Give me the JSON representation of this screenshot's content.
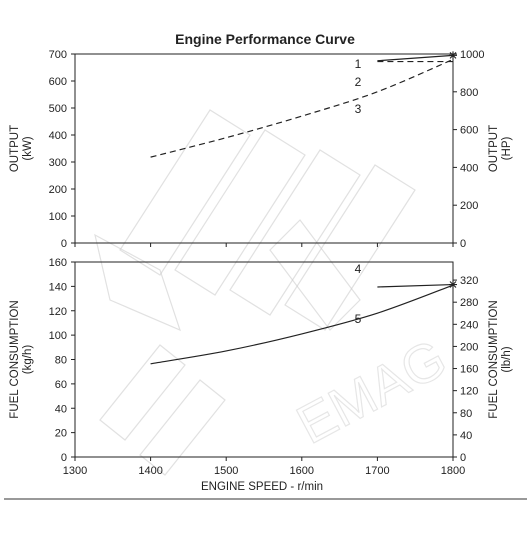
{
  "chart_data": {
    "type": "line",
    "title": "Engine Performance Curve",
    "xlabel": "ENGINE SPEED - r/min",
    "xlim": [
      1300,
      1800
    ],
    "x_ticks": [
      1300,
      1400,
      1500,
      1600,
      1700,
      1800
    ],
    "panels": [
      {
        "name": "output",
        "ylabel_left": [
          "OUTPUT",
          "(kW)"
        ],
        "ylabel_right": [
          "OUTPUT",
          "(HP)"
        ],
        "ylim_left": [
          0,
          700
        ],
        "ylim_right": [
          0,
          1000
        ],
        "yticks_left": [
          0,
          100,
          200,
          300,
          400,
          500,
          600,
          700
        ],
        "yticks_right": [
          0,
          200,
          400,
          600,
          800,
          1000
        ],
        "series": [
          {
            "label": "1",
            "style": "solid",
            "x": [
              1700,
              1800
            ],
            "y": [
              675,
              695
            ]
          },
          {
            "label": "2",
            "style": "dashed",
            "x": [
              1700,
              1800
            ],
            "y": [
              672,
              672
            ]
          },
          {
            "label": "3",
            "style": "dashed",
            "x": [
              1400,
              1500,
              1600,
              1700,
              1800
            ],
            "y": [
              318,
              390,
              470,
              560,
              680
            ]
          }
        ],
        "markers": [
          {
            "x": 1800,
            "y": 695
          }
        ]
      },
      {
        "name": "fuel_consumption",
        "ylabel_left": [
          "FUEL CONSUMPTION",
          "(kg/h)"
        ],
        "ylabel_right": [
          "FUEL CONSUMPTION",
          "(lb/h)"
        ],
        "ylim_left": [
          0,
          160
        ],
        "ylim_right": [
          0,
          352.7
        ],
        "yticks_left": [
          0,
          20,
          40,
          60,
          80,
          100,
          120,
          140,
          160
        ],
        "yticks_right": [
          0,
          40,
          80,
          120,
          160,
          200,
          240,
          280,
          320
        ],
        "series": [
          {
            "label": "4",
            "style": "solid",
            "x": [
              1700,
              1800
            ],
            "y": [
              139.5,
              141.5
            ]
          },
          {
            "label": "5",
            "style": "solid",
            "x": [
              1400,
              1500,
              1600,
              1700,
              1800
            ],
            "y": [
              76.5,
              87,
              101,
              118,
              141
            ]
          }
        ],
        "markers": [
          {
            "x": 1800,
            "y": 141.5
          }
        ]
      }
    ]
  }
}
